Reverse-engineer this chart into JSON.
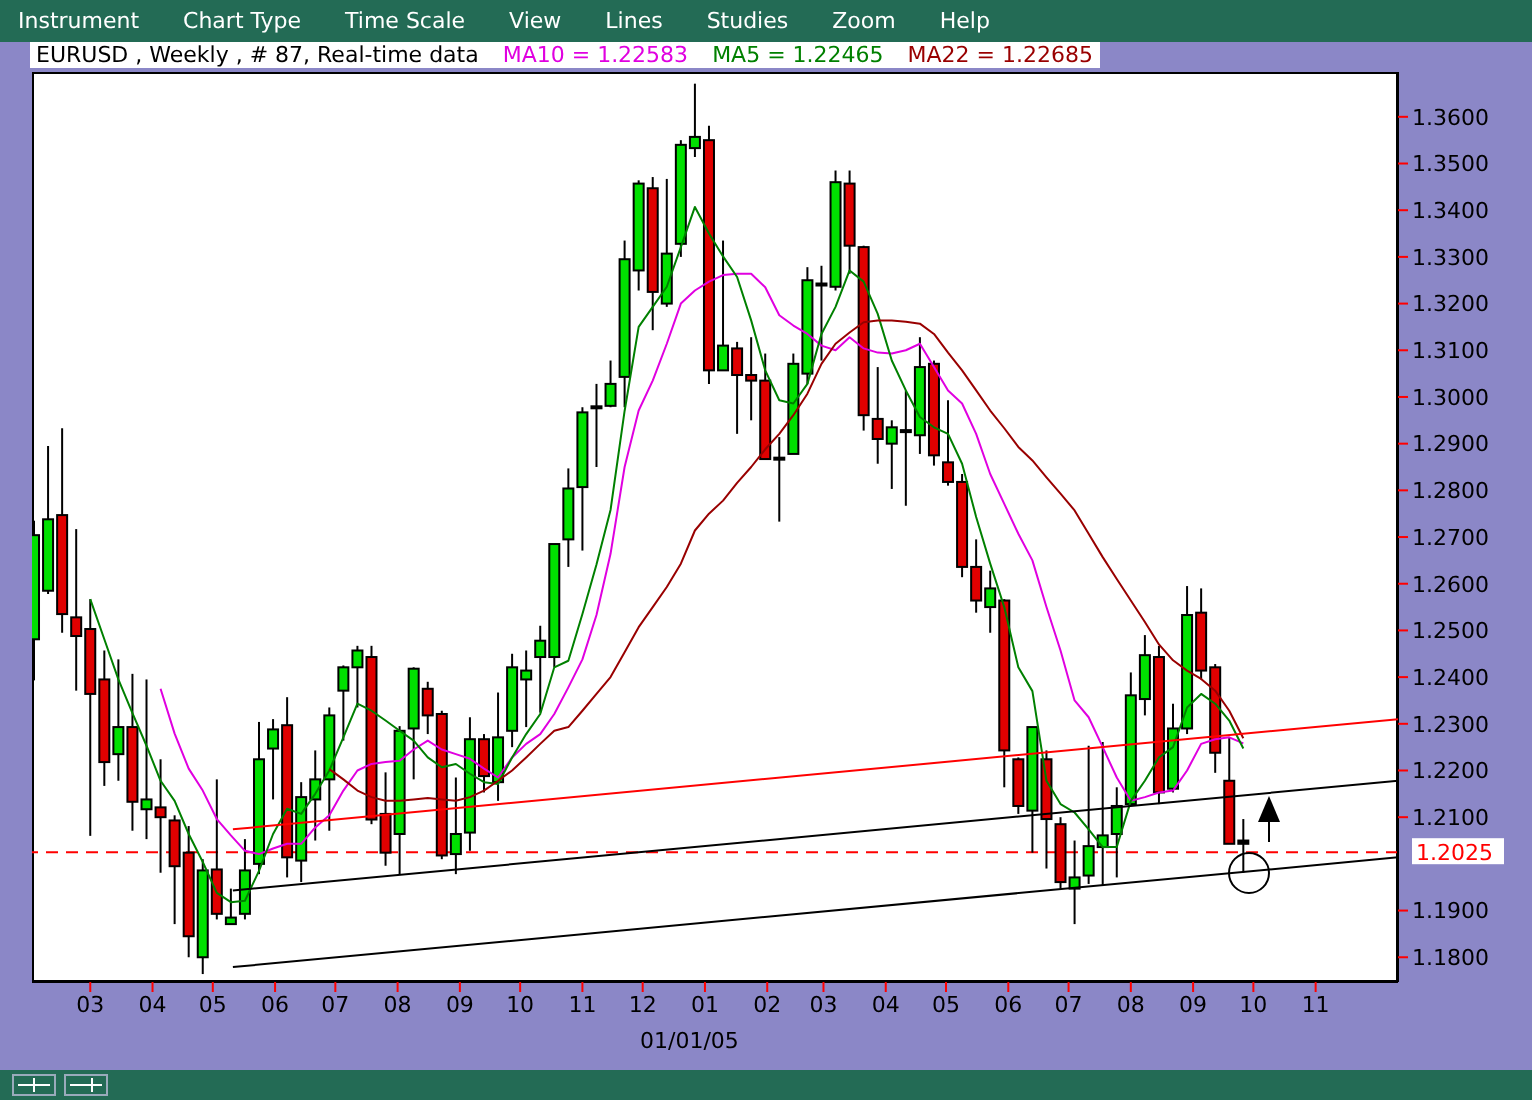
{
  "chart_data": {
    "type": "candlestick",
    "title": "EURUSD , Weekly , # 87, Real-time data",
    "x": [
      "2004-02-02",
      "2004-02-09",
      "2004-02-16",
      "2004-02-23",
      "2004-03-01",
      "2004-03-08",
      "2004-03-15",
      "2004-03-22",
      "2004-03-29",
      "2004-04-05",
      "2004-04-12",
      "2004-04-19",
      "2004-04-26",
      "2004-05-03",
      "2004-05-10",
      "2004-05-17",
      "2004-05-24",
      "2004-05-31",
      "2004-06-07",
      "2004-06-14",
      "2004-06-21",
      "2004-06-28",
      "2004-07-05",
      "2004-07-12",
      "2004-07-19",
      "2004-07-26",
      "2004-08-02",
      "2004-08-09",
      "2004-08-16",
      "2004-08-23",
      "2004-08-30",
      "2004-09-06",
      "2004-09-13",
      "2004-09-20",
      "2004-09-27",
      "2004-10-04",
      "2004-10-11",
      "2004-10-18",
      "2004-10-25",
      "2004-11-01",
      "2004-11-08",
      "2004-11-15",
      "2004-11-22",
      "2004-11-29",
      "2004-12-06",
      "2004-12-13",
      "2004-12-20",
      "2004-12-27",
      "2005-01-03",
      "2005-01-10",
      "2005-01-17",
      "2005-01-24",
      "2005-01-31",
      "2005-02-07",
      "2005-02-14",
      "2005-02-21",
      "2005-02-28",
      "2005-03-07",
      "2005-03-14",
      "2005-03-21",
      "2005-03-28",
      "2005-04-04",
      "2005-04-11",
      "2005-04-18",
      "2005-04-25",
      "2005-05-02",
      "2005-05-09",
      "2005-05-16",
      "2005-05-23",
      "2005-05-30",
      "2005-06-06",
      "2005-06-13",
      "2005-06-20",
      "2005-06-27",
      "2005-07-04",
      "2005-07-11",
      "2005-07-18",
      "2005-07-25",
      "2005-08-01",
      "2005-08-08",
      "2005-08-15",
      "2005-08-22",
      "2005-08-29",
      "2005-09-05",
      "2005-09-12",
      "2005-09-19",
      "2005-09-26"
    ],
    "ohlc": [
      [
        1.2481,
        1.2735,
        1.2393,
        1.2704
      ],
      [
        1.2585,
        1.2895,
        1.2578,
        1.2738
      ],
      [
        1.2747,
        1.2933,
        1.2495,
        1.2535
      ],
      [
        1.2528,
        1.2717,
        1.2371,
        1.2488
      ],
      [
        1.2503,
        1.2567,
        1.206,
        1.2364
      ],
      [
        1.2395,
        1.2457,
        1.2167,
        1.2218
      ],
      [
        1.2235,
        1.2438,
        1.2178,
        1.2293
      ],
      [
        1.2293,
        1.2407,
        1.2071,
        1.2133
      ],
      [
        1.2117,
        1.2395,
        1.2053,
        1.2138
      ],
      [
        1.2121,
        1.2224,
        1.1981,
        1.21
      ],
      [
        1.2093,
        1.2104,
        1.1871,
        1.1995
      ],
      [
        1.2024,
        1.2081,
        1.18,
        1.1845
      ],
      [
        1.18,
        1.201,
        1.1764,
        1.1986
      ],
      [
        1.1988,
        1.2181,
        1.1881,
        1.1893
      ],
      [
        1.1871,
        1.1947,
        1.1871,
        1.1885
      ],
      [
        1.1893,
        1.2053,
        1.1881,
        1.1986
      ],
      [
        1.2,
        1.2304,
        1.1978,
        1.2224
      ],
      [
        1.2247,
        1.231,
        1.2138,
        1.2288
      ],
      [
        1.2297,
        1.2357,
        1.1971,
        1.2014
      ],
      [
        1.2007,
        1.2175,
        1.1961,
        1.2143
      ],
      [
        1.2138,
        1.2243,
        1.205,
        1.2181
      ],
      [
        1.2181,
        1.2335,
        1.2071,
        1.2318
      ],
      [
        1.2371,
        1.2425,
        1.2264,
        1.2421
      ],
      [
        1.2421,
        1.2467,
        1.2335,
        1.2457
      ],
      [
        1.2443,
        1.2467,
        1.2085,
        1.2095
      ],
      [
        1.2107,
        1.2196,
        1.1996,
        1.2024
      ],
      [
        1.2064,
        1.2295,
        1.1978,
        1.2285
      ],
      [
        1.229,
        1.2421,
        1.2181,
        1.2418
      ],
      [
        1.2375,
        1.239,
        1.2278,
        1.2318
      ],
      [
        1.2321,
        1.2328,
        1.201,
        1.2018
      ],
      [
        1.2021,
        1.2185,
        1.1978,
        1.2064
      ],
      [
        1.2067,
        1.2314,
        1.2028,
        1.2267
      ],
      [
        1.2267,
        1.2278,
        1.2153,
        1.2188
      ],
      [
        1.2175,
        1.2367,
        1.2135,
        1.2271
      ],
      [
        1.2285,
        1.245,
        1.225,
        1.2421
      ],
      [
        1.2395,
        1.2457,
        1.2293,
        1.2414
      ],
      [
        1.2443,
        1.251,
        1.2324,
        1.2478
      ],
      [
        1.2443,
        1.2685,
        1.2421,
        1.2685
      ],
      [
        1.2695,
        1.2847,
        1.2636,
        1.2804
      ],
      [
        1.2807,
        1.2978,
        1.2671,
        1.2967
      ],
      [
        1.2978,
        1.3028,
        1.285,
        1.298
      ],
      [
        1.2981,
        1.3078,
        1.2978,
        1.3028
      ],
      [
        1.3043,
        1.3335,
        1.2978,
        1.3295
      ],
      [
        1.3271,
        1.3464,
        1.3228,
        1.3457
      ],
      [
        1.3447,
        1.3471,
        1.3143,
        1.3225
      ],
      [
        1.32,
        1.3467,
        1.3193,
        1.3307
      ],
      [
        1.3328,
        1.355,
        1.33,
        1.354
      ],
      [
        1.3533,
        1.3671,
        1.3514,
        1.3557
      ],
      [
        1.355,
        1.3581,
        1.3028,
        1.3057
      ],
      [
        1.3057,
        1.3335,
        1.3057,
        1.311
      ],
      [
        1.3104,
        1.3118,
        1.2921,
        1.3047
      ],
      [
        1.3047,
        1.3128,
        1.295,
        1.3035
      ],
      [
        1.3035,
        1.3093,
        1.2867,
        1.2867
      ],
      [
        1.287,
        1.2914,
        1.2733,
        1.2867
      ],
      [
        1.2878,
        1.3093,
        1.2878,
        1.3071
      ],
      [
        1.305,
        1.3278,
        1.3028,
        1.325
      ],
      [
        1.324,
        1.3281,
        1.3078,
        1.3243
      ],
      [
        1.3236,
        1.3485,
        1.3228,
        1.346
      ],
      [
        1.3457,
        1.3485,
        1.3264,
        1.3324
      ],
      [
        1.3321,
        1.3324,
        1.2928,
        1.2961
      ],
      [
        1.2953,
        1.3064,
        1.2857,
        1.291
      ],
      [
        1.29,
        1.295,
        1.2803,
        1.2935
      ],
      [
        1.2926,
        1.3014,
        1.2767,
        1.2929
      ],
      [
        1.2918,
        1.3128,
        1.2878,
        1.3064
      ],
      [
        1.3071,
        1.3078,
        1.2853,
        1.2875
      ],
      [
        1.286,
        1.2993,
        1.281,
        1.2818
      ],
      [
        1.2818,
        1.2835,
        1.2614,
        1.2636
      ],
      [
        1.2636,
        1.2695,
        1.2538,
        1.2564
      ],
      [
        1.255,
        1.2628,
        1.2495,
        1.259
      ],
      [
        1.2564,
        1.2567,
        1.2164,
        1.2243
      ],
      [
        1.2224,
        1.2228,
        1.2107,
        1.2124
      ],
      [
        1.2114,
        1.2293,
        1.2024,
        1.2293
      ],
      [
        1.2224,
        1.2243,
        1.199,
        1.2096
      ],
      [
        1.2085,
        1.21,
        1.1947,
        1.1961
      ],
      [
        1.1947,
        1.205,
        1.1871,
        1.1971
      ],
      [
        1.1975,
        1.2253,
        1.1957,
        1.2038
      ],
      [
        1.2036,
        1.2261,
        1.1953,
        1.2061
      ],
      [
        1.2064,
        1.2164,
        1.1971,
        1.2124
      ],
      [
        1.2128,
        1.241,
        1.2124,
        1.2361
      ],
      [
        1.2353,
        1.249,
        1.2318,
        1.2447
      ],
      [
        1.2443,
        1.2467,
        1.2128,
        1.2153
      ],
      [
        1.2161,
        1.2343,
        1.2153,
        1.229
      ],
      [
        1.229,
        1.2595,
        1.2278,
        1.2533
      ],
      [
        1.2538,
        1.259,
        1.2395,
        1.2414
      ],
      [
        1.2421,
        1.2428,
        1.2195,
        1.2238
      ],
      [
        1.2178,
        1.2271,
        1.2043,
        1.2043
      ],
      [
        1.2043,
        1.2096,
        1.1981,
        1.205
      ]
    ],
    "colors": [
      "#00e000",
      "#00e000",
      "#e00000",
      "#e00000",
      "#e00000",
      "#e00000",
      "#00e000",
      "#e00000",
      "#00e000",
      "#e00000",
      "#e00000",
      "#e00000",
      "#00e000",
      "#e00000",
      "#00e000",
      "#00e000",
      "#00e000",
      "#00e000",
      "#e00000",
      "#00e000",
      "#00e000",
      "#00e000",
      "#00e000",
      "#00e000",
      "#e00000",
      "#e00000",
      "#00e000",
      "#00e000",
      "#e00000",
      "#e00000",
      "#00e000",
      "#00e000",
      "#e00000",
      "#00e000",
      "#00e000",
      "#00e000",
      "#00e000",
      "#00e000",
      "#00e000",
      "#00e000",
      "#000000",
      "#00e000",
      "#00e000",
      "#00e000",
      "#e00000",
      "#00e000",
      "#00e000",
      "#00e000",
      "#e00000",
      "#00e000",
      "#e00000",
      "#e00000",
      "#e00000",
      "#000000",
      "#00e000",
      "#00e000",
      "#000000",
      "#00e000",
      "#e00000",
      "#e00000",
      "#e00000",
      "#00e000",
      "#000000",
      "#00e000",
      "#e00000",
      "#e00000",
      "#e00000",
      "#e00000",
      "#00e000",
      "#e00000",
      "#e00000",
      "#00e000",
      "#e00000",
      "#e00000",
      "#00e000",
      "#00e000",
      "#00e000",
      "#00e000",
      "#00e000",
      "#00e000",
      "#e00000",
      "#00e000",
      "#00e000",
      "#e00000",
      "#e00000",
      "#e00000",
      "#000000"
    ],
    "series": [
      {
        "type": "line",
        "name": "MA10 = 1.22583",
        "color": "#e000e0",
        "values": [
          null,
          null,
          null,
          null,
          null,
          null,
          null,
          null,
          null,
          1.2375,
          1.2279,
          1.2204,
          1.2157,
          1.2096,
          1.2061,
          1.2028,
          1.2021,
          1.2033,
          1.2043,
          1.2043,
          1.2078,
          1.2104,
          1.2157,
          1.22,
          1.2214,
          1.2218,
          1.2221,
          1.2245,
          1.2264,
          1.2245,
          1.2235,
          1.2225,
          1.2204,
          1.2185,
          1.2228,
          1.2257,
          1.2278,
          1.2321,
          1.2378,
          1.2438,
          1.2533,
          1.2664,
          1.285,
          1.2971,
          1.3035,
          1.3114,
          1.32,
          1.3228,
          1.3247,
          1.3261,
          1.3264,
          1.3264,
          1.3235,
          1.3175,
          1.3153,
          1.3135,
          1.311,
          1.31,
          1.3128,
          1.3104,
          1.3095,
          1.3093,
          1.31,
          1.3114,
          1.3064,
          1.3014,
          1.2986,
          1.2921,
          1.2835,
          1.2771,
          1.2707,
          1.265,
          1.255,
          1.2457,
          1.235,
          1.2314,
          1.225,
          1.2185,
          1.2135,
          1.2143,
          1.2153,
          1.2157,
          1.22,
          1.2257,
          1.2267,
          1.2271,
          1.2258
        ]
      },
      {
        "type": "line",
        "name": "MA5 = 1.22465",
        "color": "#008000",
        "values": [
          null,
          null,
          null,
          null,
          1.2567,
          1.2481,
          1.2395,
          1.2323,
          1.2253,
          1.2178,
          1.2135,
          1.2064,
          1.2004,
          1.1938,
          1.1918,
          1.1921,
          1.1985,
          1.2064,
          1.2118,
          1.2107,
          1.215,
          1.22,
          1.2271,
          1.2343,
          1.2328,
          1.2307,
          1.2285,
          1.2264,
          1.2228,
          1.2207,
          1.2214,
          1.2193,
          1.2175,
          1.2171,
          1.2228,
          1.2278,
          1.2321,
          1.2421,
          1.2435,
          1.2535,
          1.2641,
          1.2758,
          1.297,
          1.315,
          1.3193,
          1.3236,
          1.3321,
          1.3407,
          1.335,
          1.3301,
          1.3257,
          1.3164,
          1.3057,
          1.2993,
          1.2986,
          1.3028,
          1.3135,
          1.3193,
          1.3271,
          1.3247,
          1.3178,
          1.3078,
          1.3014,
          1.2957,
          1.2935,
          1.2921,
          1.2857,
          1.2743,
          1.2643,
          1.255,
          1.2421,
          1.237,
          1.2178,
          1.2128,
          1.211,
          1.2074,
          1.2036,
          1.2036,
          1.2135,
          1.2178,
          1.2228,
          1.225,
          1.2335,
          1.2364,
          1.2343,
          1.2307,
          1.2247
        ]
      },
      {
        "type": "line",
        "name": "MA22 = 1.22685",
        "color": "#990000",
        "values": [
          null,
          null,
          null,
          null,
          null,
          null,
          null,
          null,
          null,
          null,
          null,
          null,
          null,
          null,
          null,
          null,
          null,
          null,
          null,
          null,
          null,
          1.2203,
          1.2181,
          1.2157,
          1.2143,
          1.2135,
          1.2135,
          1.2138,
          1.2141,
          1.2138,
          1.2135,
          1.2143,
          1.2157,
          1.2178,
          1.22,
          1.2228,
          1.2257,
          1.2285,
          1.2293,
          1.2328,
          1.2364,
          1.24,
          1.2453,
          1.2507,
          1.255,
          1.2593,
          1.2643,
          1.2714,
          1.275,
          1.2778,
          1.2816,
          1.285,
          1.2888,
          1.2921,
          1.2961,
          1.3007,
          1.3071,
          1.3114,
          1.3138,
          1.316,
          1.3164,
          1.3164,
          1.3161,
          1.3157,
          1.3135,
          1.3095,
          1.3057,
          1.3014,
          1.2971,
          1.2933,
          1.2893,
          1.2864,
          1.2828,
          1.2793,
          1.2757,
          1.2707,
          1.2657,
          1.261,
          1.2564,
          1.2518,
          1.247,
          1.2436,
          1.2414,
          1.2396,
          1.2371,
          1.2328,
          1.2269
        ]
      },
      {
        "type": "line",
        "color": "#ff0000",
        "x": [
          "2004-05-11",
          "2005-12-12"
        ],
        "values": [
          1.2074,
          1.231
        ]
      },
      {
        "type": "line",
        "color": "#000000",
        "x": [
          "2004-05-11",
          "2005-12-12"
        ],
        "values": [
          1.1943,
          1.2178
        ]
      },
      {
        "type": "line",
        "color": "#000000",
        "x": [
          "2004-05-11",
          "2005-12-12"
        ],
        "values": [
          1.1779,
          1.2014
        ]
      }
    ],
    "xlim": [
      "2004-02-01",
      "2005-12-12"
    ],
    "xticks": [
      {
        "value": "2004-03",
        "label": "03"
      },
      {
        "value": "2004-04",
        "label": "04"
      },
      {
        "value": "2004-05",
        "label": "05"
      },
      {
        "value": "2004-06",
        "label": "06"
      },
      {
        "value": "2004-07",
        "label": "07"
      },
      {
        "value": "2004-08",
        "label": "08"
      },
      {
        "value": "2004-09",
        "label": "09"
      },
      {
        "value": "2004-10",
        "label": "10"
      },
      {
        "value": "2004-11",
        "label": "11"
      },
      {
        "value": "2004-12",
        "label": "12"
      },
      {
        "value": "2005-01",
        "label": "01"
      },
      {
        "value": "2005-02",
        "label": "02"
      },
      {
        "value": "2005-03",
        "label": "03"
      },
      {
        "value": "2005-04",
        "label": "04"
      },
      {
        "value": "2005-05",
        "label": "05"
      },
      {
        "value": "2005-06",
        "label": "06"
      },
      {
        "value": "2005-07",
        "label": "07"
      },
      {
        "value": "2005-08",
        "label": "08"
      },
      {
        "value": "2005-09",
        "label": "09"
      },
      {
        "value": "2005-10",
        "label": "10"
      },
      {
        "value": "2005-11",
        "label": "11"
      }
    ],
    "ylim": [
      1.1747,
      1.3696
    ],
    "yticks": [
      {
        "value": 1.18,
        "label": "1.1800"
      },
      {
        "value": 1.19,
        "label": "1.1900"
      },
      {
        "value": 1.21,
        "label": "1.2100"
      },
      {
        "value": 1.22,
        "label": "1.2200"
      },
      {
        "value": 1.23,
        "label": "1.2300"
      },
      {
        "value": 1.24,
        "label": "1.2400"
      },
      {
        "value": 1.25,
        "label": "1.2500"
      },
      {
        "value": 1.26,
        "label": "1.2600"
      },
      {
        "value": 1.27,
        "label": "1.2700"
      },
      {
        "value": 1.28,
        "label": "1.2800"
      },
      {
        "value": 1.29,
        "label": "1.2900"
      },
      {
        "value": 1.3,
        "label": "1.3000"
      },
      {
        "value": 1.31,
        "label": "1.3100"
      },
      {
        "value": 1.32,
        "label": "1.3200"
      },
      {
        "value": 1.33,
        "label": "1.3300"
      },
      {
        "value": 1.34,
        "label": "1.3400"
      },
      {
        "value": 1.35,
        "label": "1.3500"
      },
      {
        "value": 1.36,
        "label": "1.3600"
      }
    ],
    "ref_lines": [
      {
        "axis": "y",
        "value": 1.2025,
        "label": "1.2025",
        "color": "#ff0000",
        "line_style": "dashed"
      }
    ],
    "annotations": [
      "Instrument",
      "Chart Type",
      "Time Scale",
      "View",
      "Lines",
      "Studies",
      "Zoom",
      "Help",
      "01/01/05"
    ],
    "legend": "top"
  }
}
